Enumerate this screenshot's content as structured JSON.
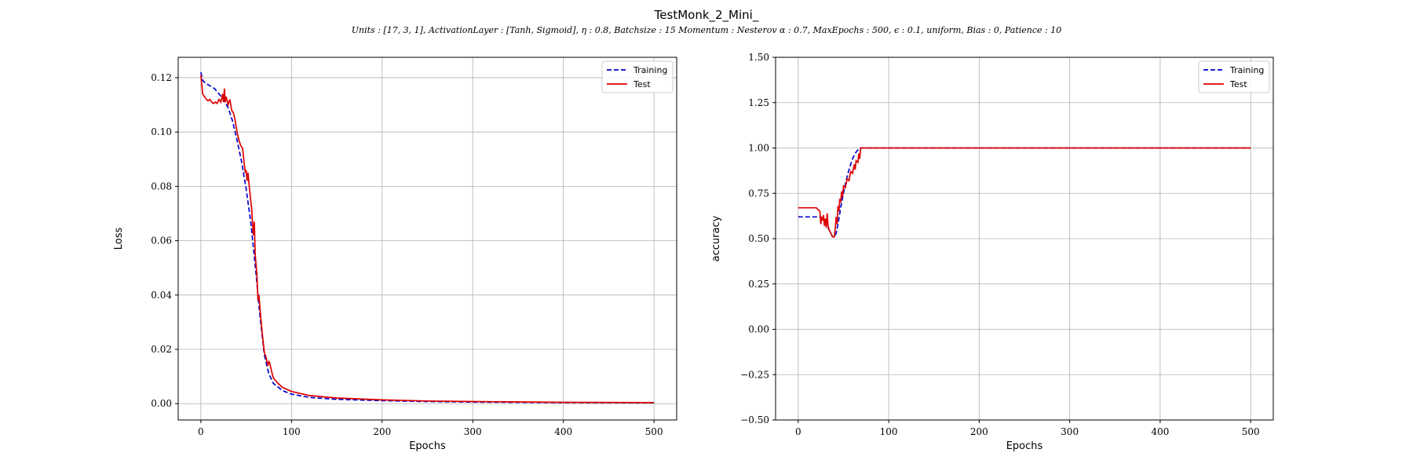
{
  "figure": {
    "title": "TestMonk_2_Mini_",
    "subtitle": "Units : [17, 3, 1], ActivationLayer : [Tanh, Sigmoid], η : 0.8, Batchsize : 15 Momentum : Nesterov α : 0.7, MaxEpochs : 500, ϵ : 0.1, uniform, Bias : 0, Patience : 10"
  },
  "colors": {
    "training": "#0000cc",
    "test": "#dd0000",
    "grid": "#b0b0b0"
  },
  "chart_data": [
    {
      "type": "line",
      "id": "loss",
      "xlabel": "Epochs",
      "ylabel": "Loss",
      "xlim": [
        -25,
        525
      ],
      "ylim": [
        -0.006,
        0.1275
      ],
      "xticks": [
        0,
        100,
        200,
        300,
        400,
        500
      ],
      "xtick_labels": [
        "0",
        "100",
        "200",
        "300",
        "400",
        "500"
      ],
      "yticks": [
        0.0,
        0.02,
        0.04,
        0.06,
        0.08,
        0.1,
        0.12
      ],
      "ytick_labels": [
        "0.00",
        "0.02",
        "0.04",
        "0.06",
        "0.08",
        "0.10",
        "0.12"
      ],
      "grid": true,
      "legend_position": "top-right",
      "series": [
        {
          "name": "Training",
          "style": "dashed",
          "color": "#0000cc",
          "points": [
            [
              0,
              0.122
            ],
            [
              2,
              0.119
            ],
            [
              5,
              0.118
            ],
            [
              10,
              0.117
            ],
            [
              15,
              0.116
            ],
            [
              20,
              0.114
            ],
            [
              25,
              0.112
            ],
            [
              30,
              0.109
            ],
            [
              35,
              0.104
            ],
            [
              40,
              0.097
            ],
            [
              45,
              0.089
            ],
            [
              50,
              0.079
            ],
            [
              55,
              0.067
            ],
            [
              60,
              0.051
            ],
            [
              65,
              0.033
            ],
            [
              70,
              0.018
            ],
            [
              75,
              0.011
            ],
            [
              80,
              0.0075
            ],
            [
              90,
              0.0048
            ],
            [
              100,
              0.0035
            ],
            [
              120,
              0.0023
            ],
            [
              150,
              0.0016
            ],
            [
              200,
              0.0011
            ],
            [
              250,
              0.0008
            ],
            [
              300,
              0.0006
            ],
            [
              400,
              0.0004
            ],
            [
              500,
              0.0003
            ]
          ]
        },
        {
          "name": "Test",
          "style": "solid",
          "color": "#dd0000",
          "points": [
            [
              0,
              0.121
            ],
            [
              2,
              0.114
            ],
            [
              4,
              0.113
            ],
            [
              6,
              0.112
            ],
            [
              8,
              0.1115
            ],
            [
              10,
              0.112
            ],
            [
              12,
              0.111
            ],
            [
              14,
              0.1105
            ],
            [
              16,
              0.111
            ],
            [
              18,
              0.1105
            ],
            [
              20,
              0.112
            ],
            [
              22,
              0.111
            ],
            [
              24,
              0.114
            ],
            [
              25,
              0.111
            ],
            [
              26,
              0.116
            ],
            [
              27,
              0.111
            ],
            [
              28,
              0.113
            ],
            [
              30,
              0.11
            ],
            [
              32,
              0.112
            ],
            [
              34,
              0.108
            ],
            [
              36,
              0.107
            ],
            [
              38,
              0.104
            ],
            [
              40,
              0.1
            ],
            [
              42,
              0.097
            ],
            [
              44,
              0.095
            ],
            [
              46,
              0.094
            ],
            [
              48,
              0.088
            ],
            [
              49,
              0.085
            ],
            [
              50,
              0.086
            ],
            [
              51,
              0.082
            ],
            [
              52,
              0.085
            ],
            [
              54,
              0.078
            ],
            [
              56,
              0.072
            ],
            [
              58,
              0.062
            ],
            [
              59,
              0.067
            ],
            [
              60,
              0.055
            ],
            [
              62,
              0.047
            ],
            [
              63,
              0.038
            ],
            [
              64,
              0.04
            ],
            [
              66,
              0.032
            ],
            [
              68,
              0.025
            ],
            [
              70,
              0.019
            ],
            [
              72,
              0.017
            ],
            [
              74,
              0.014
            ],
            [
              75,
              0.0155
            ],
            [
              76,
              0.015
            ],
            [
              78,
              0.012
            ],
            [
              80,
              0.0095
            ],
            [
              85,
              0.0075
            ],
            [
              90,
              0.006
            ],
            [
              100,
              0.0045
            ],
            [
              120,
              0.003
            ],
            [
              150,
              0.0021
            ],
            [
              200,
              0.0014
            ],
            [
              250,
              0.001
            ],
            [
              300,
              0.0008
            ],
            [
              400,
              0.0005
            ],
            [
              500,
              0.0004
            ]
          ]
        }
      ]
    },
    {
      "type": "line",
      "id": "accuracy",
      "xlabel": "Epochs",
      "ylabel": "accuracy",
      "xlim": [
        -25,
        525
      ],
      "ylim": [
        -0.5,
        1.5
      ],
      "xticks": [
        0,
        100,
        200,
        300,
        400,
        500
      ],
      "xtick_labels": [
        "0",
        "100",
        "200",
        "300",
        "400",
        "500"
      ],
      "yticks": [
        -0.5,
        -0.25,
        0.0,
        0.25,
        0.5,
        0.75,
        1.0,
        1.25,
        1.5
      ],
      "ytick_labels": [
        "−0.50",
        "−0.25",
        "0.00",
        "0.25",
        "0.50",
        "0.75",
        "1.00",
        "1.25",
        "1.50"
      ],
      "grid": true,
      "legend_position": "top-right",
      "series": [
        {
          "name": "Training",
          "style": "dashed",
          "color": "#0000cc",
          "points": [
            [
              0,
              0.62
            ],
            [
              10,
              0.62
            ],
            [
              20,
              0.62
            ],
            [
              25,
              0.62
            ],
            [
              28,
              0.6
            ],
            [
              30,
              0.59
            ],
            [
              33,
              0.56
            ],
            [
              36,
              0.53
            ],
            [
              38,
              0.51
            ],
            [
              40,
              0.51
            ],
            [
              42,
              0.53
            ],
            [
              44,
              0.58
            ],
            [
              46,
              0.64
            ],
            [
              48,
              0.7
            ],
            [
              50,
              0.75
            ],
            [
              52,
              0.8
            ],
            [
              55,
              0.86
            ],
            [
              58,
              0.91
            ],
            [
              60,
              0.94
            ],
            [
              63,
              0.97
            ],
            [
              66,
              0.99
            ],
            [
              68,
              1.0
            ],
            [
              70,
              1.0
            ],
            [
              500,
              1.0
            ]
          ]
        },
        {
          "name": "Test",
          "style": "solid",
          "color": "#dd0000",
          "points": [
            [
              0,
              0.67
            ],
            [
              10,
              0.67
            ],
            [
              20,
              0.67
            ],
            [
              22,
              0.66
            ],
            [
              24,
              0.65
            ],
            [
              25,
              0.58
            ],
            [
              26,
              0.62
            ],
            [
              27,
              0.6
            ],
            [
              28,
              0.63
            ],
            [
              29,
              0.57
            ],
            [
              30,
              0.61
            ],
            [
              31,
              0.56
            ],
            [
              32,
              0.64
            ],
            [
              33,
              0.57
            ],
            [
              34,
              0.55
            ],
            [
              36,
              0.53
            ],
            [
              38,
              0.51
            ],
            [
              40,
              0.51
            ],
            [
              41,
              0.56
            ],
            [
              42,
              0.62
            ],
            [
              43,
              0.58
            ],
            [
              44,
              0.68
            ],
            [
              45,
              0.65
            ],
            [
              46,
              0.72
            ],
            [
              47,
              0.7
            ],
            [
              48,
              0.76
            ],
            [
              49,
              0.73
            ],
            [
              50,
              0.79
            ],
            [
              52,
              0.78
            ],
            [
              54,
              0.83
            ],
            [
              56,
              0.82
            ],
            [
              58,
              0.87
            ],
            [
              60,
              0.86
            ],
            [
              62,
              0.91
            ],
            [
              63,
              0.88
            ],
            [
              64,
              0.93
            ],
            [
              66,
              0.92
            ],
            [
              67,
              0.97
            ],
            [
              68,
              0.94
            ],
            [
              69,
              1.0
            ],
            [
              70,
              1.0
            ],
            [
              500,
              1.0
            ]
          ]
        }
      ]
    }
  ]
}
